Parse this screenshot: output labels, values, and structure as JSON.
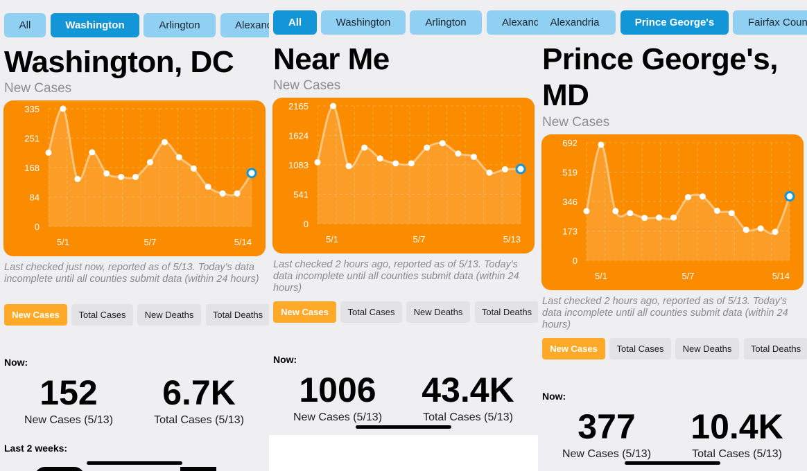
{
  "colors": {
    "accent": "#1296d8",
    "chart_bg": "#fb8c00",
    "active_seg": "#ffa928"
  },
  "panels": [
    {
      "tabs": [
        "All",
        "Washington",
        "Arlington",
        "Alexandria"
      ],
      "active_tab": "Washington",
      "title_lines": [
        "Washington, DC"
      ],
      "subtitle": "New Cases",
      "note": "Last checked just now, reported as of 5/13. Today's data incomplete until all counties submit data (within 24 hours)",
      "segments": [
        "New Cases",
        "Total Cases",
        "New Deaths",
        "Total Deaths"
      ],
      "now_label": "Now:",
      "stats": [
        {
          "value": "152",
          "label": "New Cases (5/13)"
        },
        {
          "value": "6.7K",
          "label": "Total Cases (5/13)"
        }
      ],
      "last_label": "Last 2 weeks:",
      "chart_data": {
        "type": "line",
        "yticks": [
          "335",
          "251",
          "168",
          "84",
          "0"
        ],
        "ylim": [
          0,
          335
        ],
        "xticks": [
          "5/1",
          "5/7",
          "5/14"
        ],
        "values": [
          210,
          335,
          135,
          211,
          151,
          141,
          141,
          183,
          240,
          197,
          165,
          113,
          94,
          94,
          152
        ]
      }
    },
    {
      "tabs": [
        "All",
        "Washington",
        "Arlington",
        "Alexandria"
      ],
      "active_tab": "All",
      "title_lines": [
        "Near Me"
      ],
      "subtitle": "New Cases",
      "note": "Last checked 2 hours ago, reported as of 5/13. Today's data incomplete until all counties submit data (within 24 hours)",
      "segments": [
        "New Cases",
        "Total Cases",
        "New Deaths",
        "Total Deaths"
      ],
      "now_label": "Now:",
      "stats": [
        {
          "value": "1006",
          "label": "New Cases (5/13)"
        },
        {
          "value": "43.4K",
          "label": "Total Cases (5/13)"
        }
      ],
      "chart_data": {
        "type": "line",
        "yticks": [
          "2165",
          "1624",
          "1083",
          "541",
          "0"
        ],
        "ylim": [
          0,
          2165
        ],
        "xticks": [
          "5/1",
          "5/7",
          "5/13"
        ],
        "values": [
          1130,
          2165,
          1060,
          1400,
          1200,
          1110,
          1110,
          1400,
          1480,
          1290,
          1230,
          940,
          1000,
          1006
        ]
      }
    },
    {
      "tabs": [
        "Alexandria",
        "Prince George's",
        "Fairfax County"
      ],
      "active_tab": "Prince George's",
      "title_lines": [
        "Prince George's,",
        "MD"
      ],
      "subtitle": "New Cases",
      "note": "Last checked 2 hours ago, reported as of 5/13. Today's data incomplete until all counties submit data (within 24 hours)",
      "segments": [
        "New Cases",
        "Total Cases",
        "New Deaths",
        "Total Deaths"
      ],
      "now_label": "Now:",
      "stats": [
        {
          "value": "377",
          "label": "New Cases (5/13)"
        },
        {
          "value": "10.4K",
          "label": "Total Cases (5/13)"
        }
      ],
      "chart_data": {
        "type": "line",
        "yticks": [
          "692",
          "519",
          "346",
          "173",
          "0"
        ],
        "ylim": [
          0,
          692
        ],
        "xticks": [
          "5/1",
          "5/7",
          "5/14"
        ],
        "values": [
          290,
          680,
          290,
          278,
          250,
          252,
          252,
          372,
          376,
          292,
          278,
          180,
          188,
          168,
          377
        ]
      }
    }
  ]
}
